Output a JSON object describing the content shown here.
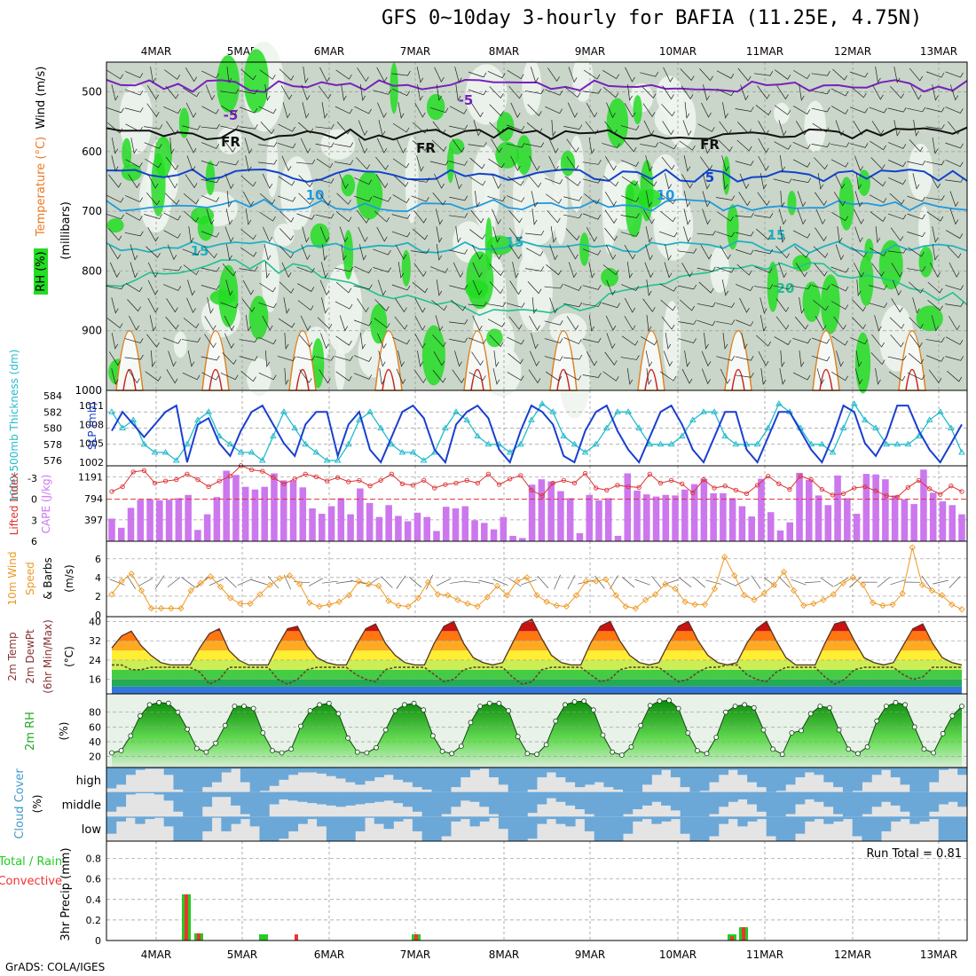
{
  "title": "GFS 0~10day 3-hourly for BAFIA (11.25E, 4.75N)",
  "credit": "GrADS: COLA/IGES",
  "date_labels": [
    "4MAR",
    "5MAR",
    "6MAR",
    "7MAR",
    "8MAR",
    "9MAR",
    "10MAR",
    "11MAR",
    "12MAR",
    "13MAR"
  ],
  "colors": {
    "grid": "#999999",
    "rh_green": "#22dd22",
    "rh_light": "#d8e8d8",
    "slp": "#1a3fd0",
    "thickness": "#22bbcc",
    "lifted": "#dd3333",
    "cape": "#cc77ee",
    "wind": "#ee9922",
    "rain_total": "#22cc22",
    "convective": "#ee3333",
    "cloud": "#6ba8d8",
    "cloud_gap": "#e4e4e4"
  },
  "chart_data": [
    {
      "type": "heatmap",
      "name": "upper-air",
      "ylabel_parts": [
        "RH (%)",
        "Temperature (°C)",
        "Wind (m/s)"
      ],
      "ylabel_unit": "(millibars)",
      "yticks": [
        "500",
        "600",
        "700",
        "800",
        "900",
        "1000"
      ],
      "ylim": [
        1000,
        450
      ],
      "contour_labels": [
        "-5",
        "FR",
        "FR",
        "FR",
        "-5",
        "5",
        "10",
        "10",
        "15",
        "15",
        "15",
        "20"
      ]
    },
    {
      "type": "line",
      "name": "slp-thickness",
      "ylabel_left": "1000-500mb Thickness (dm)",
      "ylabel_right": "SLP (mb)",
      "yticks_left": [
        "576",
        "578",
        "580",
        "582",
        "584"
      ],
      "yticks_right": [
        "1002",
        "1005",
        "1008",
        "1011"
      ],
      "series": [
        {
          "name": "SLP",
          "values": [
            1007,
            1010,
            1008,
            1006,
            1008,
            1010,
            1011,
            1002,
            1008,
            1009,
            1005,
            1003,
            1007,
            1010,
            1011,
            1008,
            1005,
            1003,
            1008,
            1010,
            1010,
            1003,
            1008,
            1010,
            1004,
            1002,
            1006,
            1010,
            1011,
            1009,
            1004,
            1002,
            1008,
            1010,
            1011,
            1009,
            1004,
            1002,
            1007,
            1011,
            1010,
            1008,
            1003,
            1002,
            1007,
            1010,
            1011,
            1007,
            1004,
            1002,
            1006,
            1010,
            1011,
            1008,
            1004,
            1002,
            1006,
            1010,
            1010,
            1004,
            1002,
            1006,
            1010,
            1010,
            1007,
            1004,
            1002,
            1006,
            1011,
            1010,
            1005,
            1003,
            1006,
            1011,
            1011,
            1007,
            1004,
            1002,
            1005,
            1008
          ]
        },
        {
          "name": "Thickness",
          "values": [
            582,
            580,
            581,
            578,
            577,
            577,
            576,
            578,
            581,
            582,
            579,
            578,
            577,
            577,
            576,
            579,
            582,
            580,
            578,
            577,
            576,
            576,
            578,
            581,
            582,
            580,
            578,
            577,
            577,
            576,
            577,
            580,
            582,
            581,
            579,
            578,
            578,
            577,
            578,
            581,
            583,
            582,
            579,
            578,
            577,
            578,
            580,
            582,
            582,
            580,
            578,
            578,
            578,
            579,
            581,
            582,
            582,
            579,
            578,
            578,
            578,
            580,
            583,
            582,
            580,
            578,
            578,
            577,
            580,
            583,
            581,
            580,
            578,
            578,
            578,
            579,
            581,
            582,
            580,
            577
          ]
        }
      ]
    },
    {
      "type": "bar",
      "name": "cape-lifted",
      "ylabel_left": "Lifted Index",
      "ylabel_right": "CAPE (J/kg)",
      "yticks_left": [
        "-3",
        "0",
        "3",
        "6"
      ],
      "yticks_right": [
        "397",
        "794",
        "1191"
      ],
      "series": [
        {
          "name": "CAPE",
          "values": [
            420,
            250,
            620,
            770,
            780,
            760,
            770,
            800,
            860,
            210,
            500,
            820,
            1310,
            1230,
            1010,
            960,
            1010,
            1260,
            1130,
            1120,
            1000,
            610,
            510,
            650,
            800,
            500,
            980,
            710,
            450,
            670,
            470,
            370,
            530,
            450,
            190,
            640,
            610,
            650,
            390,
            340,
            220,
            450,
            100,
            60,
            1050,
            1150,
            1110,
            930,
            800,
            150,
            860,
            760,
            800,
            100,
            1260,
            940,
            870,
            830,
            860,
            850,
            960,
            1060,
            1160,
            890,
            890,
            800,
            650,
            460,
            1160,
            540,
            200,
            350,
            1270,
            1140,
            850,
            670,
            1220,
            800,
            510,
            1250,
            1240,
            1150,
            850,
            780,
            690,
            1330,
            900,
            740,
            670,
            500
          ]
        },
        {
          "name": "Lifted Index",
          "values": [
            -1.1,
            -1.8,
            -3.9,
            -4.1,
            -2.3,
            -2.6,
            -2.8,
            -3.6,
            -2.8,
            -1.8,
            -2.6,
            -3.3,
            -4.8,
            -4.2,
            -4.0,
            -3.1,
            -2.2,
            -2.9,
            -3.6,
            -3.2,
            -2.6,
            -3.1,
            -2.5,
            -2.7,
            -1.9,
            -2.7,
            -3.6,
            -2.2,
            -2.0,
            -2.7,
            -1.6,
            -2.1,
            -2.3,
            -2.7,
            -2.3,
            -3.6,
            -2.1,
            -2.9,
            -3.4,
            -1.3,
            -0.5,
            -2.3,
            -2.7,
            -2.3,
            -3.7,
            -1.6,
            -1.3,
            -2.0,
            -1.8,
            -1.7,
            -3.6,
            -2.3,
            -2.7,
            -2.2,
            -0.9,
            -2.8,
            -1.6,
            -1.9,
            -1.3,
            -0.8,
            -2.0,
            -3.3,
            -2.2,
            -1.4,
            -3.3,
            -2.8,
            -1.4,
            -0.6,
            -0.8,
            -1.6,
            -1.8,
            -1.2,
            -0.5,
            -0.3,
            -1.7,
            -2.7,
            -1.5,
            -0.7,
            -1.9,
            -1.1
          ]
        }
      ]
    },
    {
      "type": "line",
      "name": "wind10m",
      "ylabel": "10m Wind Speed & Barbs (m/s)",
      "ylabel_parts": [
        "10m Wind",
        "Speed",
        "& Barbs"
      ],
      "ylabel_unit": "(m/s)",
      "yticks": [
        "0",
        "2",
        "4",
        "6"
      ],
      "ylim": [
        0,
        7.5
      ],
      "values": [
        2.2,
        3.6,
        4.4,
        2.6,
        0.7,
        0.7,
        0.7,
        0.7,
        2.6,
        3.4,
        4.1,
        3.0,
        1.8,
        1.2,
        1.2,
        2.2,
        3.2,
        3.9,
        4.2,
        3.3,
        1.3,
        0.9,
        1.1,
        1.4,
        2.1,
        3.6,
        3.3,
        3.1,
        1.5,
        1.0,
        0.9,
        1.8,
        3.5,
        2.2,
        2.1,
        1.6,
        1.2,
        0.9,
        1.9,
        3.1,
        2.1,
        3.6,
        4.0,
        2.1,
        1.4,
        1.0,
        0.9,
        2.1,
        3.6,
        3.6,
        3.8,
        2.1,
        0.9,
        0.7,
        1.6,
        2.2,
        3.3,
        2.8,
        1.4,
        1.1,
        1.1,
        2.8,
        6.2,
        4.2,
        2.1,
        1.6,
        2.3,
        3.2,
        4.6,
        2.6,
        1.0,
        1.2,
        1.6,
        2.2,
        3.4,
        4.0,
        3.2,
        1.3,
        1.0,
        1.1,
        2.3,
        7.2,
        3.2,
        2.6,
        2.1,
        1.1,
        0.6
      ]
    },
    {
      "type": "area",
      "name": "temp2m",
      "ylabel_parts": [
        "2m Temp",
        "2m DewPt",
        "(6hr Min/Max)"
      ],
      "ylabel_unit": "(°C)",
      "yticks": [
        "16",
        "24",
        "32",
        "40"
      ],
      "ylim": [
        10,
        42
      ],
      "series": [
        {
          "name": "Temp",
          "values": [
            29,
            34,
            36,
            30,
            26,
            23,
            22,
            22,
            22,
            29,
            35,
            37,
            28,
            24,
            22,
            22,
            22,
            30,
            37,
            38,
            30,
            25,
            23,
            22,
            22,
            30,
            37,
            39,
            31,
            26,
            23,
            22,
            22,
            31,
            38,
            40,
            31,
            25,
            23,
            22,
            23,
            31,
            39,
            41,
            33,
            26,
            23,
            22,
            22,
            31,
            38,
            40,
            32,
            26,
            23,
            22,
            23,
            31,
            38,
            40,
            32,
            26,
            23,
            22,
            23,
            31,
            37,
            40,
            32,
            25,
            22,
            22,
            22,
            31,
            39,
            40,
            32,
            25,
            23,
            22,
            23,
            30,
            37,
            39,
            31,
            25,
            23,
            22
          ]
        },
        {
          "name": "DewPt",
          "values": [
            22,
            22,
            20,
            20,
            21,
            21,
            21,
            21,
            21,
            19,
            14,
            16,
            21,
            21,
            21,
            21,
            21,
            16,
            14,
            16,
            20,
            21,
            21,
            21,
            21,
            18,
            16,
            15,
            20,
            21,
            21,
            21,
            21,
            18,
            15,
            16,
            20,
            21,
            21,
            21,
            21,
            17,
            14,
            15,
            20,
            21,
            21,
            21,
            21,
            18,
            15,
            16,
            20,
            21,
            21,
            21,
            21,
            18,
            15,
            16,
            19,
            21,
            21,
            22,
            22,
            18,
            16,
            15,
            19,
            21,
            21,
            21,
            21,
            17,
            14,
            16,
            20,
            21,
            21,
            21,
            21,
            18,
            16,
            17,
            21,
            21,
            21,
            21
          ]
        }
      ]
    },
    {
      "type": "area",
      "name": "rh2m",
      "ylabel": "2m RH",
      "ylabel_unit": "(%)",
      "yticks": [
        "20",
        "40",
        "60",
        "80"
      ],
      "ylim": [
        10,
        100
      ],
      "values": [
        25,
        28,
        48,
        75,
        90,
        93,
        92,
        80,
        57,
        31,
        26,
        38,
        62,
        88,
        88,
        85,
        52,
        28,
        25,
        30,
        61,
        82,
        90,
        92,
        78,
        45,
        26,
        25,
        32,
        56,
        82,
        90,
        92,
        83,
        48,
        27,
        24,
        34,
        66,
        88,
        92,
        92,
        82,
        47,
        24,
        23,
        36,
        68,
        90,
        94,
        95,
        83,
        49,
        26,
        22,
        33,
        62,
        89,
        95,
        96,
        85,
        52,
        28,
        24,
        46,
        80,
        88,
        90,
        86,
        56,
        30,
        23,
        52,
        55,
        78,
        88,
        86,
        56,
        30,
        24,
        33,
        68,
        88,
        93,
        90,
        60,
        30,
        25,
        51,
        75,
        88
      ]
    },
    {
      "type": "bar",
      "name": "cloud",
      "ylabel": "Cloud Cover",
      "ylabel_unit": "(%)",
      "levels": [
        "high",
        "middle",
        "low"
      ],
      "series": [
        {
          "name": "high",
          "values": [
            85,
            70,
            30,
            10,
            5,
            5,
            30,
            90,
            100,
            100,
            80,
            60,
            20,
            5,
            60,
            100,
            95,
            75,
            50,
            30,
            20,
            20,
            25,
            35,
            45,
            60,
            70,
            55,
            40,
            30,
            50,
            60,
            80,
            90,
            100,
            100,
            80,
            40,
            10,
            5,
            40,
            70,
            100,
            100,
            90,
            40,
            20,
            40,
            60,
            80,
            70,
            60,
            80,
            90,
            100,
            100,
            70,
            30,
            10,
            40,
            80,
            100,
            95,
            60,
            30,
            10,
            30,
            60,
            80,
            100,
            95,
            70,
            40,
            20,
            30,
            60,
            80,
            100,
            95,
            60,
            30,
            10,
            40,
            70,
            100,
            100,
            60,
            10,
            5,
            30
          ]
        },
        {
          "name": "middle",
          "values": [
            80,
            60,
            10,
            5,
            5,
            10,
            35,
            80,
            100,
            100,
            60,
            20,
            20,
            55,
            90,
            100,
            100,
            50,
            30,
            35,
            40,
            45,
            50,
            55,
            60,
            55,
            50,
            45,
            40,
            35,
            45,
            60,
            80,
            100,
            100,
            90,
            60,
            35,
            40,
            60,
            90,
            100,
            100,
            100,
            85,
            50,
            25,
            40,
            55,
            70,
            90,
            100,
            100,
            100,
            90,
            70,
            55,
            40,
            55,
            75,
            100,
            100,
            100,
            90,
            60,
            40,
            30,
            50,
            80,
            100,
            100,
            90,
            50,
            30,
            40,
            60,
            90,
            100,
            100,
            90,
            60,
            40,
            55,
            80,
            100,
            100,
            80,
            50,
            40,
            60
          ]
        },
        {
          "name": "low",
          "values": [
            70,
            20,
            5,
            30,
            10,
            5,
            40,
            100,
            100,
            100,
            60,
            5,
            60,
            30,
            10,
            40,
            100,
            100,
            90,
            60,
            30,
            10,
            40,
            100,
            100,
            100,
            60,
            5,
            30,
            50,
            20,
            10,
            60,
            100,
            100,
            80,
            20,
            10,
            40,
            20,
            5,
            50,
            100,
            100,
            90,
            30,
            10,
            30,
            40,
            10,
            60,
            100,
            100,
            100,
            70,
            20,
            10,
            30,
            20,
            10,
            70,
            100,
            100,
            80,
            30,
            10,
            40,
            20,
            10,
            80,
            100,
            100,
            70,
            20,
            10,
            30,
            20,
            10,
            80,
            100,
            100,
            60,
            20,
            10,
            30,
            20,
            10,
            100,
            100,
            100
          ]
        }
      ]
    },
    {
      "type": "bar",
      "name": "precip",
      "ylabel": "3hr Precip (mm)",
      "legend": [
        "Total / Rain",
        "Convective"
      ],
      "annotation": "Run Total = 0.81",
      "yticks": [
        "0",
        "0.2",
        "0.4",
        "0.6",
        "0.8"
      ],
      "ylim": [
        0,
        0.9
      ],
      "categories": [
        "04MAR09Z",
        "04MAR12Z",
        "05MAR06Z",
        "05MAR15Z",
        "06MAR21Z",
        "10MAR18Z",
        "10MAR21Z"
      ],
      "series": [
        {
          "name": "Total / Rain",
          "values": [
            0.45,
            0.07,
            0.06,
            0.0,
            0.06,
            0.06,
            0.13
          ]
        },
        {
          "name": "Convective",
          "values": [
            0.45,
            0.07,
            0.0,
            0.06,
            0.06,
            0.04,
            0.13
          ]
        }
      ]
    }
  ]
}
